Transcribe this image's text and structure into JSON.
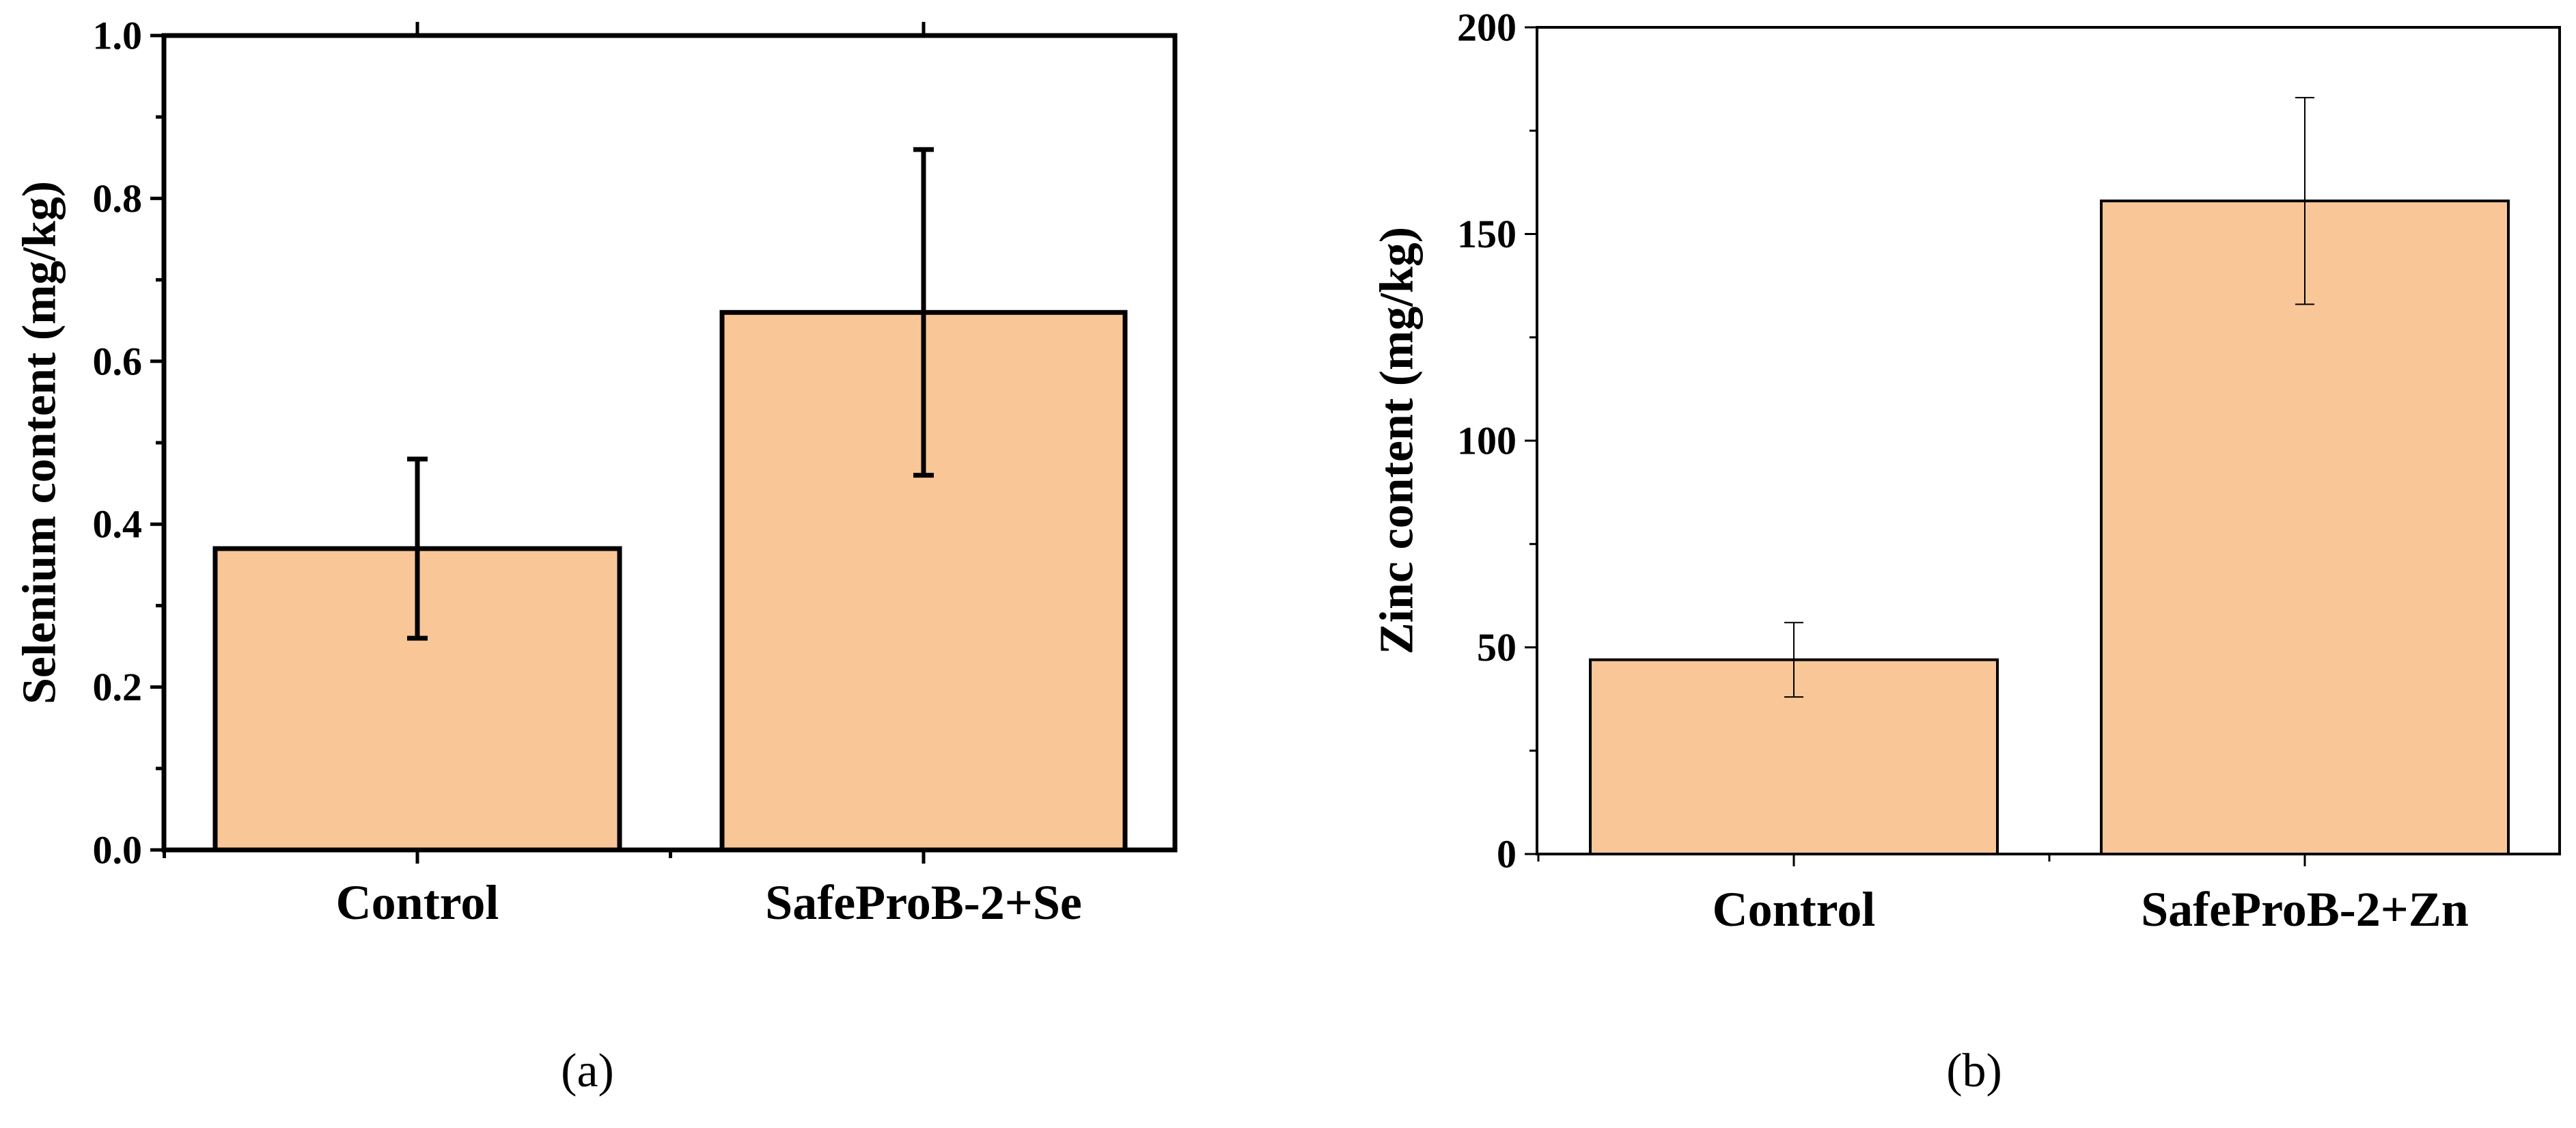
{
  "chart_data": [
    {
      "type": "bar",
      "panel_label": "(a)",
      "title": "",
      "xlabel": "",
      "ylabel": "Selenium content (mg/kg)",
      "categories": [
        "Control",
        "SafeProB-2+Se"
      ],
      "values": [
        0.37,
        0.66
      ],
      "errors": [
        0.11,
        0.2
      ],
      "ylim": [
        0,
        1.0
      ],
      "yticks": [
        0.0,
        0.2,
        0.4,
        0.6,
        0.8,
        1.0
      ],
      "ytick_labels": [
        "0.0",
        "0.2",
        "0.4",
        "0.6",
        "0.8",
        "1.0"
      ],
      "bar_color": "#F9C698",
      "edge_color": "#000000",
      "grid": false
    },
    {
      "type": "bar",
      "panel_label": "(b)",
      "title": "",
      "xlabel": "",
      "ylabel": "Zinc content (mg/kg)",
      "categories": [
        "Control",
        "SafeProB-2+Zn"
      ],
      "values": [
        47,
        158
      ],
      "errors": [
        9,
        25
      ],
      "ylim": [
        0,
        200
      ],
      "yticks": [
        0,
        50,
        100,
        150,
        200
      ],
      "ytick_labels": [
        "0",
        "50",
        "100",
        "150",
        "200"
      ],
      "bar_color": "#F9C698",
      "edge_color": "#000000",
      "grid": false
    }
  ]
}
